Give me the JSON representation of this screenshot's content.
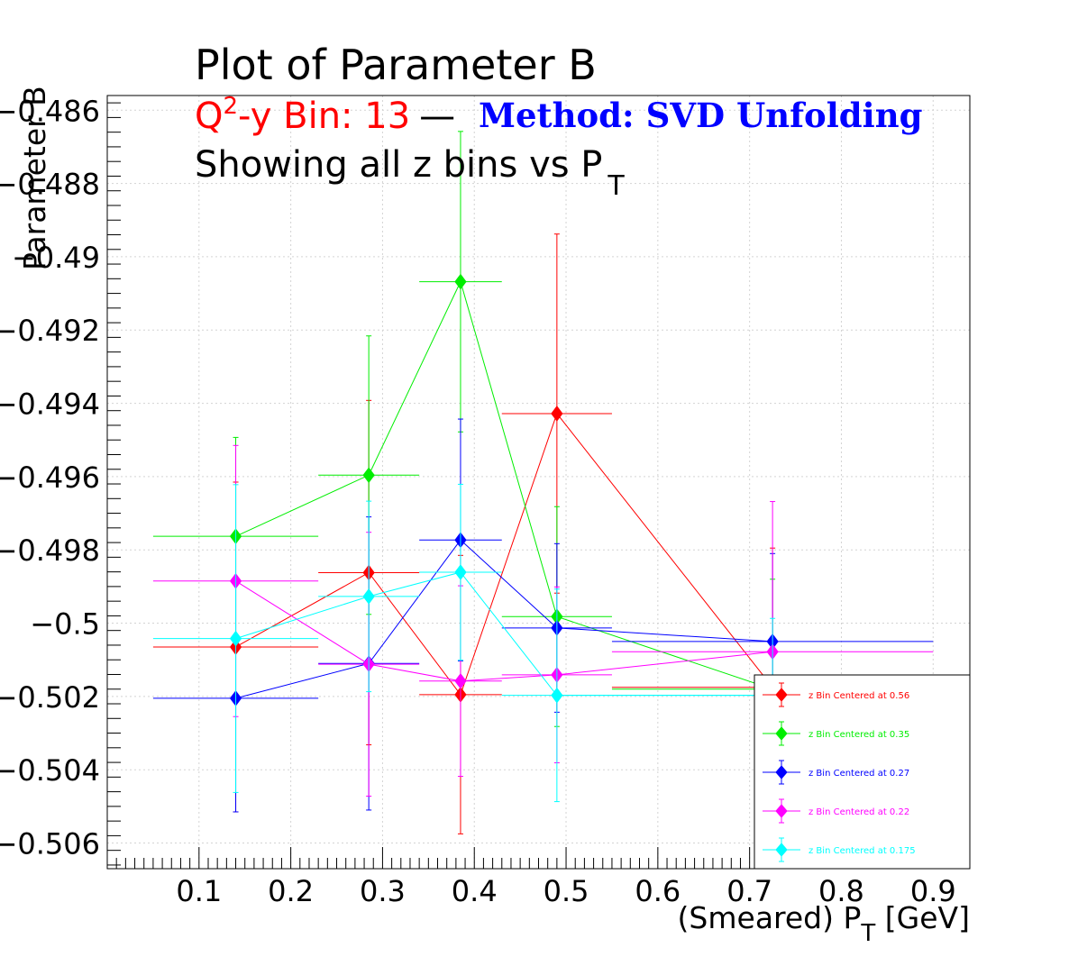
{
  "chart_data": {
    "type": "scatter",
    "title": "Plot of Parameter B",
    "subtitle": {
      "part1_prefix": "Q",
      "part1_sup": "2",
      "part1_suffix": "-y Bin: 13",
      "dash": "—",
      "method": "Method: SVD Unfolding",
      "line3_main": "Showing all z bins vs P",
      "line3_sub": "T"
    },
    "xlabel_prefix": "(Smeared) P",
    "xlabel_sub": "T",
    "xlabel_suffix": " [GeV]",
    "ylabel": "Parameter B",
    "xlim": [
      0.0,
      0.94
    ],
    "ylim": [
      -0.5067,
      -0.4856
    ],
    "xticks": [
      0.1,
      0.2,
      0.3,
      0.4,
      0.5,
      0.6,
      0.7,
      0.8,
      0.9
    ],
    "xtick_labels": [
      "0.1",
      "0.2",
      "0.3",
      "0.4",
      "0.5",
      "0.6",
      "0.7",
      "0.8",
      "0.9"
    ],
    "yticks": [
      -0.486,
      -0.488,
      -0.49,
      -0.492,
      -0.494,
      -0.496,
      -0.498,
      -0.5,
      -0.502,
      -0.504,
      -0.506
    ],
    "ytick_labels": [
      "−0.486",
      "−0.488",
      "−0.49",
      "−0.492",
      "−0.494",
      "−0.496",
      "−0.498",
      "−0.5",
      "−0.502",
      "−0.504",
      "−0.506"
    ],
    "grid": true,
    "legend_position": "bottom-right",
    "series": [
      {
        "name": "z Bin Centered at 0.56",
        "color": "#ff0000",
        "x": [
          0.14,
          0.285,
          0.385,
          0.49,
          0.725
        ],
        "xerr": [
          0.09,
          0.055,
          0.045,
          0.06,
          0.175
        ],
        "y": [
          -0.50065,
          -0.49862,
          -0.50195,
          -0.49428,
          -0.50175
        ],
        "yerr": [
          0.0045,
          0.0047,
          0.0038,
          0.0049,
          0.0038
        ]
      },
      {
        "name": "z Bin Centered at 0.35",
        "color": "#00ee00",
        "x": [
          0.14,
          0.285,
          0.385,
          0.49,
          0.725
        ],
        "xerr": [
          0.09,
          0.055,
          0.045,
          0.06,
          0.175
        ],
        "y": [
          -0.49763,
          -0.49596,
          -0.49068,
          -0.49982,
          -0.5018
        ],
        "yerr": [
          0.0027,
          0.0038,
          0.0041,
          0.003,
          0.003
        ]
      },
      {
        "name": "z Bin Centered at 0.27",
        "color": "#0000ff",
        "x": [
          0.14,
          0.285,
          0.385,
          0.49,
          0.725
        ],
        "xerr": [
          0.09,
          0.055,
          0.045,
          0.06,
          0.175
        ],
        "y": [
          -0.50205,
          -0.5011,
          -0.49773,
          -0.50013,
          -0.5005
        ],
        "yerr": [
          0.0031,
          0.004,
          0.0033,
          0.0023,
          0.0024
        ]
      },
      {
        "name": "z Bin Centered at 0.22",
        "color": "#ff00ff",
        "x": [
          0.14,
          0.285,
          0.385,
          0.49,
          0.725
        ],
        "xerr": [
          0.09,
          0.055,
          0.045,
          0.06,
          0.175
        ],
        "y": [
          -0.49885,
          -0.50112,
          -0.50158,
          -0.50141,
          -0.50078
        ],
        "yerr": [
          0.0037,
          0.0036,
          0.0026,
          0.0024,
          0.0041
        ]
      },
      {
        "name": "z Bin Centered at 0.175",
        "color": "#00ffff",
        "x": [
          0.14,
          0.285,
          0.385,
          0.49,
          0.725
        ],
        "xerr": [
          0.09,
          0.055,
          0.045,
          0.06,
          0.175
        ],
        "y": [
          -0.50042,
          -0.49927,
          -0.49861,
          -0.50197,
          -0.50197
        ],
        "yerr": [
          0.0042,
          0.0026,
          0.0024,
          0.0029,
          0.0021
        ]
      }
    ]
  },
  "colors": {
    "subtitle_red": "#ff0000",
    "method_blue": "#0000ff",
    "grid": "#d3d3d3"
  }
}
